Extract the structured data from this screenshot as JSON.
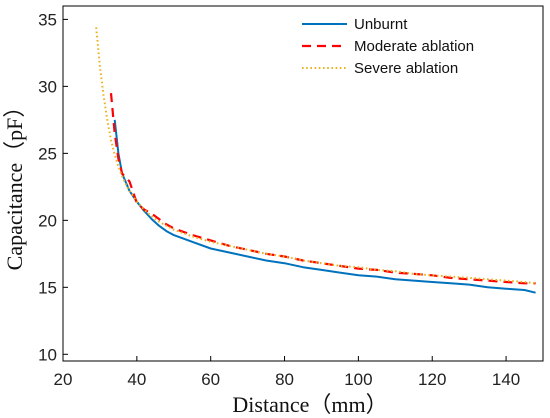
{
  "chart_data": {
    "type": "line",
    "title": "",
    "xlabel": "Distance（mm）",
    "ylabel": "Capacitance（pF）",
    "xlim": [
      20,
      150
    ],
    "ylim": [
      9.5,
      36
    ],
    "xticks": [
      20,
      40,
      60,
      80,
      100,
      120,
      140
    ],
    "yticks": [
      10,
      15,
      20,
      25,
      30,
      35
    ],
    "grid": false,
    "legend_position": "top-right",
    "series": [
      {
        "name": "Unburnt",
        "color": "#0072BD",
        "dash": "solid",
        "x": [
          34,
          35,
          36,
          38,
          40,
          42,
          44,
          46,
          48,
          50,
          55,
          60,
          65,
          70,
          75,
          80,
          85,
          90,
          95,
          100,
          105,
          110,
          115,
          120,
          125,
          130,
          135,
          140,
          145,
          148
        ],
        "y": [
          27.5,
          25.0,
          23.5,
          22.2,
          21.4,
          20.7,
          20.1,
          19.6,
          19.2,
          18.9,
          18.4,
          17.9,
          17.6,
          17.3,
          17.0,
          16.8,
          16.5,
          16.3,
          16.1,
          15.9,
          15.8,
          15.6,
          15.5,
          15.4,
          15.3,
          15.2,
          15.0,
          14.9,
          14.8,
          14.6
        ]
      },
      {
        "name": "Moderate ablation",
        "color": "#FF0000",
        "dash": "dashed",
        "x": [
          33,
          34,
          35,
          36,
          38,
          40,
          42,
          44,
          46,
          48,
          50,
          55,
          60,
          65,
          70,
          75,
          80,
          85,
          90,
          95,
          100,
          105,
          110,
          115,
          120,
          125,
          130,
          135,
          140,
          145,
          148
        ],
        "y": [
          29.5,
          26.5,
          24.6,
          23.5,
          22.9,
          21.3,
          20.8,
          20.5,
          20.1,
          19.7,
          19.4,
          18.9,
          18.5,
          18.1,
          17.8,
          17.5,
          17.3,
          17.0,
          16.8,
          16.6,
          16.4,
          16.3,
          16.1,
          16.0,
          15.9,
          15.7,
          15.6,
          15.5,
          15.4,
          15.3,
          15.3
        ]
      },
      {
        "name": "Severe ablation",
        "color": "#EDB120",
        "dash": "dotted",
        "x": [
          29,
          30,
          31,
          32,
          33,
          34,
          35,
          36,
          37,
          38,
          40,
          42,
          44,
          46,
          48,
          50,
          55,
          60,
          65,
          70,
          75,
          80,
          85,
          90,
          95,
          100,
          105,
          110,
          115,
          120,
          125,
          130,
          135,
          140,
          145,
          148
        ],
        "y": [
          34.4,
          31.5,
          29.3,
          27.5,
          26.0,
          24.9,
          24.0,
          23.3,
          22.7,
          22.2,
          21.4,
          20.8,
          20.3,
          19.9,
          19.6,
          19.3,
          18.8,
          18.4,
          18.1,
          17.8,
          17.5,
          17.3,
          17.0,
          16.8,
          16.6,
          16.5,
          16.3,
          16.2,
          16.0,
          15.9,
          15.8,
          15.7,
          15.6,
          15.5,
          15.4,
          15.3
        ]
      }
    ]
  }
}
